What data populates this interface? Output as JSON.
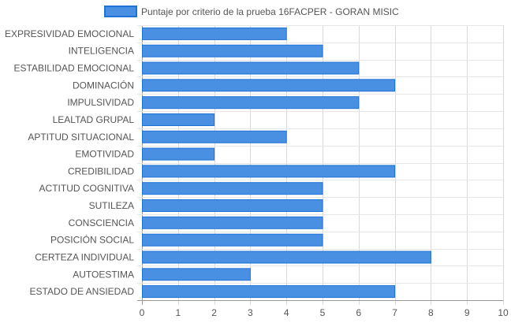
{
  "chart_data": {
    "type": "bar",
    "orientation": "horizontal",
    "title": "",
    "xlabel": "",
    "ylabel": "",
    "xlim": [
      0,
      10
    ],
    "x_ticks": [
      0,
      1,
      2,
      3,
      4,
      5,
      6,
      7,
      8,
      9,
      10
    ],
    "grid": true,
    "legend_position": "top",
    "categories": [
      "EXPRESIVIDAD EMOCIONAL",
      "INTELIGENCIA",
      "ESTABILIDAD EMOCIONAL",
      "DOMINACIÓN",
      "IMPULSIVIDAD",
      "LEALTAD GRUPAL",
      "APTITUD SITUACIONAL",
      "EMOTIVIDAD",
      "CREDIBILIDAD",
      "ACTITUD COGNITIVA",
      "SUTILEZA",
      "CONSCIENCIA",
      "POSICIÓN SOCIAL",
      "CERTEZA INDIVIDUAL",
      "AUTOESTIMA",
      "ESTADO DE ANSIEDAD"
    ],
    "series": [
      {
        "name": "Puntaje por criterio de la prueba 16FACPER - GORAN MISIC",
        "color": "#4a90e2",
        "border_color": "#1f72d6",
        "values": [
          4,
          5,
          6,
          7,
          6,
          2,
          4,
          2,
          7,
          5,
          5,
          5,
          5,
          8,
          3,
          7
        ]
      }
    ]
  }
}
